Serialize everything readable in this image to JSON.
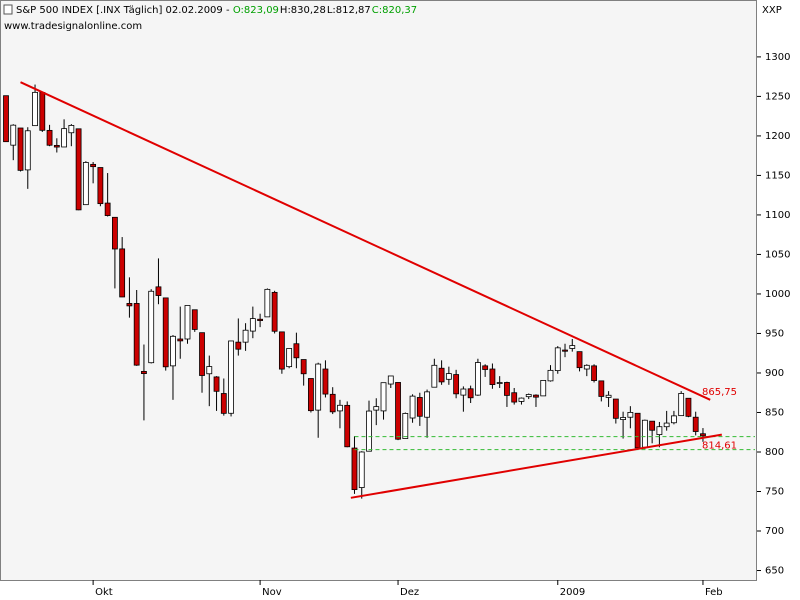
{
  "chart_data": {
    "type": "candlestick",
    "title": "S&P 500 INDEX [.INX  Täglich] 02.02.2009 -",
    "ohlc_labels": [
      "O:823,09",
      "H:830,28",
      "L:812,87",
      "C:820,37"
    ],
    "ohlc_label_colors": [
      "#00a000",
      "#000000",
      "#000000",
      "#00a000"
    ],
    "subtitle": "www.tradesignalonline.com",
    "y_axis_label": "XXP",
    "categories": [
      null,
      null,
      null,
      null,
      null,
      null,
      null,
      null,
      null,
      null,
      null,
      null,
      "Okt",
      null,
      null,
      null,
      null,
      null,
      null,
      null,
      null,
      null,
      null,
      null,
      null,
      null,
      null,
      null,
      null,
      null,
      null,
      null,
      null,
      null,
      null,
      "Nov",
      null,
      null,
      null,
      null,
      null,
      null,
      null,
      null,
      null,
      null,
      null,
      null,
      null,
      null,
      null,
      null,
      null,
      null,
      "Dez",
      null,
      null,
      null,
      null,
      null,
      null,
      null,
      null,
      null,
      null,
      null,
      null,
      null,
      null,
      null,
      null,
      null,
      null,
      null,
      null,
      null,
      "2009",
      null,
      null,
      null,
      null,
      null,
      null,
      null,
      null,
      null,
      null,
      null,
      null,
      null,
      null,
      null,
      null,
      null,
      null,
      null,
      "Feb"
    ],
    "open": [
      1250.9,
      1188.3,
      1210,
      1157,
      1213,
      1255,
      1207,
      1188,
      1186,
      1204,
      1209,
      1113,
      1164,
      1160,
      1115,
      1097,
      1057,
      988,
      988,
      902,
      913,
      1009,
      995,
      909,
      943,
      943,
      980,
      951,
      899,
      895,
      874,
      849,
      939,
      939,
      953,
      968,
      971,
      1002,
      952,
      908,
      937,
      917,
      893,
      853,
      905,
      873,
      852,
      859,
      805,
      755,
      801,
      853,
      852,
      886,
      888,
      817,
      843,
      869,
      844,
      882,
      906,
      892,
      898,
      872,
      880,
      872,
      909,
      905,
      887,
      888,
      875,
      864,
      870,
      872,
      871,
      890,
      903,
      929,
      931,
      927,
      905,
      909,
      890,
      869,
      867,
      841,
      844,
      849,
      806,
      839,
      822,
      832,
      837,
      846,
      868,
      844,
      823.09
    ],
    "high": [
      1250.9,
      1214.8,
      1210,
      1211,
      1265,
      1255,
      1214,
      1197,
      1221,
      1215,
      1209,
      1168,
      1167,
      1160,
      1153,
      1097,
      1072,
      1021,
      1005,
      936,
      1006,
      1045,
      995,
      948,
      984,
      985,
      980,
      951,
      922,
      896,
      893,
      940,
      969,
      963,
      984,
      975,
      1007,
      1004,
      952,
      931,
      951,
      917,
      893,
      913,
      916,
      882,
      866,
      864,
      820,
      801,
      865,
      868,
      887,
      896,
      888,
      850,
      873,
      875,
      879,
      918,
      916,
      908,
      904,
      883,
      884,
      918,
      911,
      912,
      896,
      889,
      881,
      869,
      874,
      873,
      891,
      910,
      934,
      937,
      943,
      927,
      911,
      911,
      890,
      877,
      867,
      851,
      858,
      849,
      841,
      839,
      838,
      852,
      852,
      877,
      868,
      851,
      830.28
    ],
    "low": [
      1192.7,
      1169.3,
      1155,
      1133,
      1213,
      1205,
      1187,
      1179,
      1186,
      1187,
      1106,
      1113,
      1140,
      1111,
      1098,
      1007,
      996,
      970,
      909,
      840,
      912,
      987,
      903,
      866,
      918,
      937,
      952,
      875,
      858,
      852,
      846,
      845,
      922,
      928,
      944,
      958,
      971,
      950,
      899,
      906,
      906,
      884,
      850,
      818,
      869,
      848,
      830,
      806,
      747,
      741,
      801,
      834,
      841,
      881,
      815,
      817,
      837,
      833,
      818,
      882,
      885,
      885,
      868,
      851,
      862,
      871,
      895,
      880,
      881,
      857,
      860,
      860,
      867,
      857,
      871,
      889,
      899,
      920,
      927,
      902,
      896,
      888,
      864,
      857,
      836,
      817,
      830,
      804,
      804,
      811,
      806,
      827,
      835,
      846,
      844,
      821,
      812.87
    ],
    "close": [
      1192.7,
      1213.6,
      1156.4,
      1206.5,
      1255.1,
      1207.1,
      1188.2,
      1185.9,
      1209.2,
      1213.3,
      1106.4,
      1166.4,
      1161.1,
      1114.3,
      1099.2,
      1056.9,
      996.2,
      984.9,
      909.9,
      899.2,
      1003.4,
      998,
      907.8,
      946.4,
      940.6,
      985.4,
      955.1,
      896.8,
      908.1,
      876.8,
      848.9,
      940.5,
      930.1,
      954.1,
      968.8,
      966.3,
      1005.8,
      952.8,
      904.9,
      931,
      919.2,
      899,
      852.3,
      911.3,
      873.3,
      850.8,
      859.1,
      806.6,
      752.4,
      800,
      851.8,
      857.4,
      887.7,
      896.2,
      816.2,
      848.8,
      870.7,
      845.2,
      876.1,
      909.7,
      888.7,
      899.2,
      873.6,
      879.7,
      868.6,
      913.2,
      904.4,
      885.3,
      887.9,
      871.6,
      863.2,
      868.2,
      872.8,
      869.4,
      890.6,
      903.3,
      931.8,
      927.5,
      934.7,
      906.7,
      909.7,
      890.4,
      870.3,
      871.8,
      842.6,
      843.7,
      850.1,
      805.2,
      840.2,
      827.5,
      832,
      836.6,
      845.7,
      874.1,
      845.1,
      825.9,
      820.37
    ],
    "up_color": "#ffffff",
    "down_color": "#cc0000",
    "ylim": [
      638,
      1372
    ],
    "yticks": [
      650,
      700,
      750,
      800,
      850,
      900,
      950,
      1000,
      1050,
      1100,
      1150,
      1200,
      1250,
      1300
    ],
    "trendlines": [
      {
        "x": [
          2,
          97
        ],
        "y": [
          1268,
          866
        ],
        "color": "#e00000",
        "value": 865.75,
        "value_label": "865,75"
      },
      {
        "x": [
          47.5,
          98.6
        ],
        "y": [
          742,
          822
        ],
        "color": "#e00000",
        "value": 814.61,
        "value_label": "814,61"
      }
    ],
    "hlines": [
      {
        "value": 819.5,
        "from": 48,
        "color": "#33bb33"
      },
      {
        "value": 803,
        "from": 48,
        "color": "#33bb33"
      }
    ]
  }
}
